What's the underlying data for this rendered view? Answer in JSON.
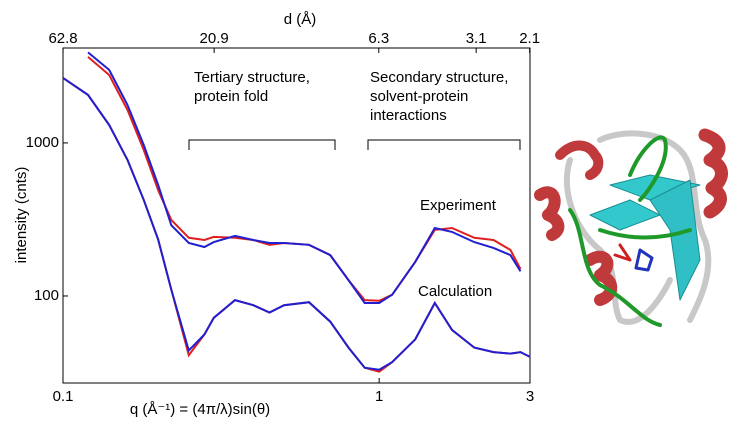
{
  "chart_data": {
    "type": "line",
    "top_axis_label": "d (Å)",
    "x_label": "q (Å⁻¹) = (4π/λ)sin(θ)",
    "y_label": "intensity (cnts)",
    "log_x": true,
    "log_y": true,
    "x": [
      0.1,
      0.12,
      0.14,
      0.16,
      0.18,
      0.2,
      0.22,
      0.25,
      0.28,
      0.3,
      0.35,
      0.4,
      0.45,
      0.5,
      0.6,
      0.7,
      0.8,
      0.9,
      1.0,
      1.1,
      1.3,
      1.5,
      1.7,
      2.0,
      2.3,
      2.6,
      2.8,
      3.0
    ],
    "series": [
      {
        "color": "#e02020",
        "values": [
          null,
          3650,
          2780,
          1640,
          900,
          490,
          314,
          240,
          232,
          243,
          240,
          232,
          216,
          222,
          216,
          185,
          127,
          94,
          93,
          102,
          167,
          270,
          278,
          240,
          232,
          200,
          150,
          null
        ]
      },
      {
        "color": "#2020d0",
        "values": [
          null,
          3900,
          3000,
          1770,
          970,
          530,
          290,
          222,
          209,
          225,
          247,
          232,
          222,
          222,
          216,
          185,
          127,
          90,
          90,
          102,
          167,
          278,
          262,
          225,
          206,
          185,
          145,
          null
        ]
      },
      {
        "color": "#e02020",
        "values": [
          2660,
          2060,
          1310,
          775,
          425,
          233,
          110,
          41,
          56,
          72,
          94,
          87,
          78,
          87,
          91,
          68,
          46,
          34,
          32,
          37,
          52,
          90,
          60,
          46,
          43,
          42,
          43,
          40
        ]
      },
      {
        "color": "#2020d0",
        "values": [
          2660,
          2060,
          1310,
          775,
          425,
          233,
          110,
          44,
          56,
          72,
          94,
          87,
          78,
          87,
          91,
          68,
          46,
          34,
          33,
          37,
          52,
          90,
          60,
          46,
          43,
          42,
          43,
          40
        ]
      }
    ],
    "xlim": [
      0.1,
      3
    ],
    "xticks": [
      0.1,
      1,
      3
    ],
    "ylim": [
      27,
      4170
    ],
    "yticks": [
      100,
      1000
    ],
    "x2ticks": [
      62.8,
      20.9,
      6.3,
      3.1,
      2.1
    ],
    "annotations": [
      [
        "Tertiary structure,",
        "protein fold"
      ],
      [
        "Secondary structure,",
        "solvent-protein",
        "interactions"
      ],
      [
        "Experiment"
      ],
      [
        "Calculation"
      ]
    ]
  }
}
